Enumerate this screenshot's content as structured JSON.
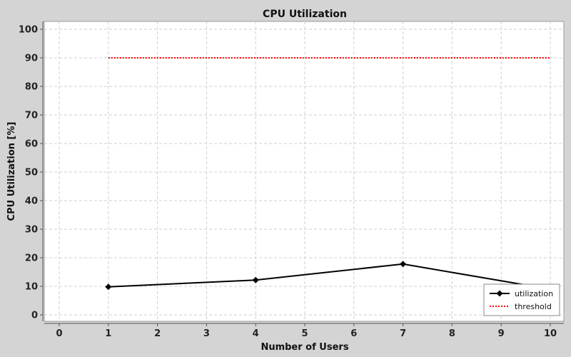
{
  "chart_data": {
    "type": "line",
    "title": "CPU Utilization",
    "xlabel": "Number of Users",
    "ylabel": "CPU Utilization [%]",
    "xlim": [
      0,
      10
    ],
    "ylim": [
      0,
      100
    ],
    "x_ticks": [
      0,
      1,
      2,
      3,
      4,
      5,
      6,
      7,
      8,
      9,
      10
    ],
    "y_ticks": [
      0,
      10,
      20,
      30,
      40,
      50,
      60,
      70,
      80,
      90,
      100
    ],
    "grid": true,
    "legend_position": "bottom-right",
    "series": [
      {
        "name": "utilization",
        "x": [
          1,
          4,
          7,
          10
        ],
        "y": [
          9.8,
          12.2,
          17.8,
          9.0
        ],
        "color": "#000000",
        "style": "solid",
        "marker": "diamond"
      },
      {
        "name": "threshold",
        "x": [
          1,
          4,
          7,
          10
        ],
        "y": [
          90,
          90,
          90,
          90
        ],
        "color": "#ff0000",
        "style": "dotted",
        "marker": "none"
      }
    ]
  },
  "colors": {
    "background": "#d4d4d4",
    "plot_background": "#ffffff",
    "grid": "#cfcfcf"
  }
}
